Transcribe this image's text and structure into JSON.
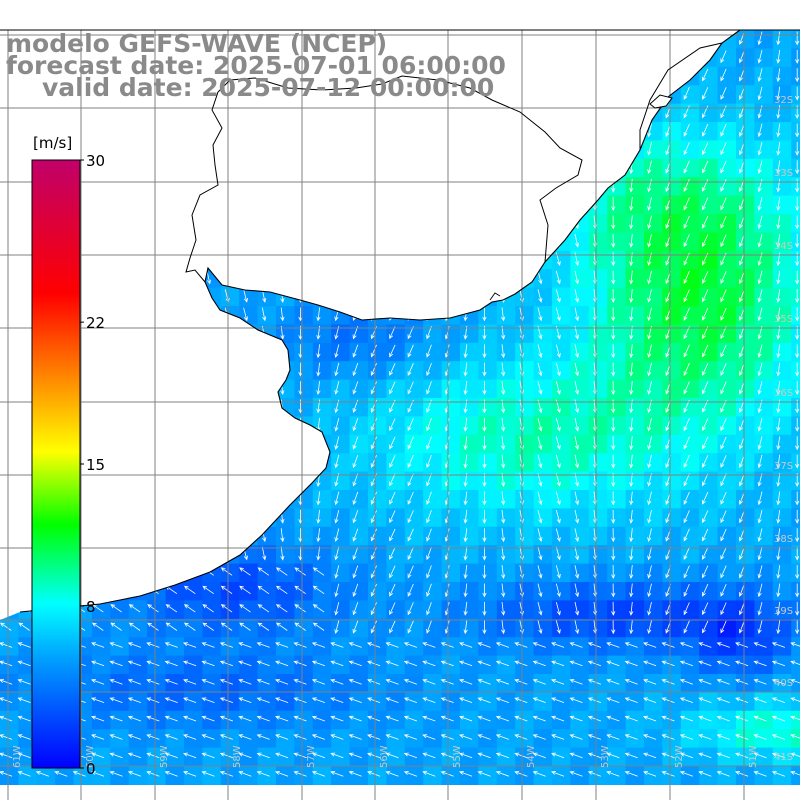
{
  "title": {
    "model": "modelo GEFS-WAVE (NCEP)",
    "forecast": "forecast date: 2025-07-01 06:00:00",
    "valid": "valid date: 2025-07-12 00:00:00"
  },
  "colorbar": {
    "unit": "[m/s]",
    "min": 0,
    "max": 30,
    "ticks": [
      {
        "value": 30,
        "label": "30"
      },
      {
        "value": 22,
        "label": "22"
      },
      {
        "value": 15,
        "label": "15"
      },
      {
        "value": 8,
        "label": "8"
      },
      {
        "value": 0,
        "label": "0"
      }
    ],
    "stops": [
      "#0000ff",
      "#00a0ff",
      "#00ffff",
      "#00ff00",
      "#ffff00",
      "#ff8000",
      "#ff0000",
      "#c0006a"
    ]
  },
  "map": {
    "lat_labels": [
      "32S",
      "33S",
      "34S",
      "35S",
      "36S",
      "37S",
      "38S",
      "39S",
      "40S",
      "41S"
    ],
    "lon_labels": [
      "61W",
      "60W",
      "59W",
      "58W",
      "57W",
      "56W",
      "55W",
      "54W",
      "53W",
      "52W",
      "51W"
    ],
    "land_color": "#ffffff",
    "grid_color": "#808080",
    "coast_color": "#000000",
    "arrow_color": "#ffffff"
  }
}
